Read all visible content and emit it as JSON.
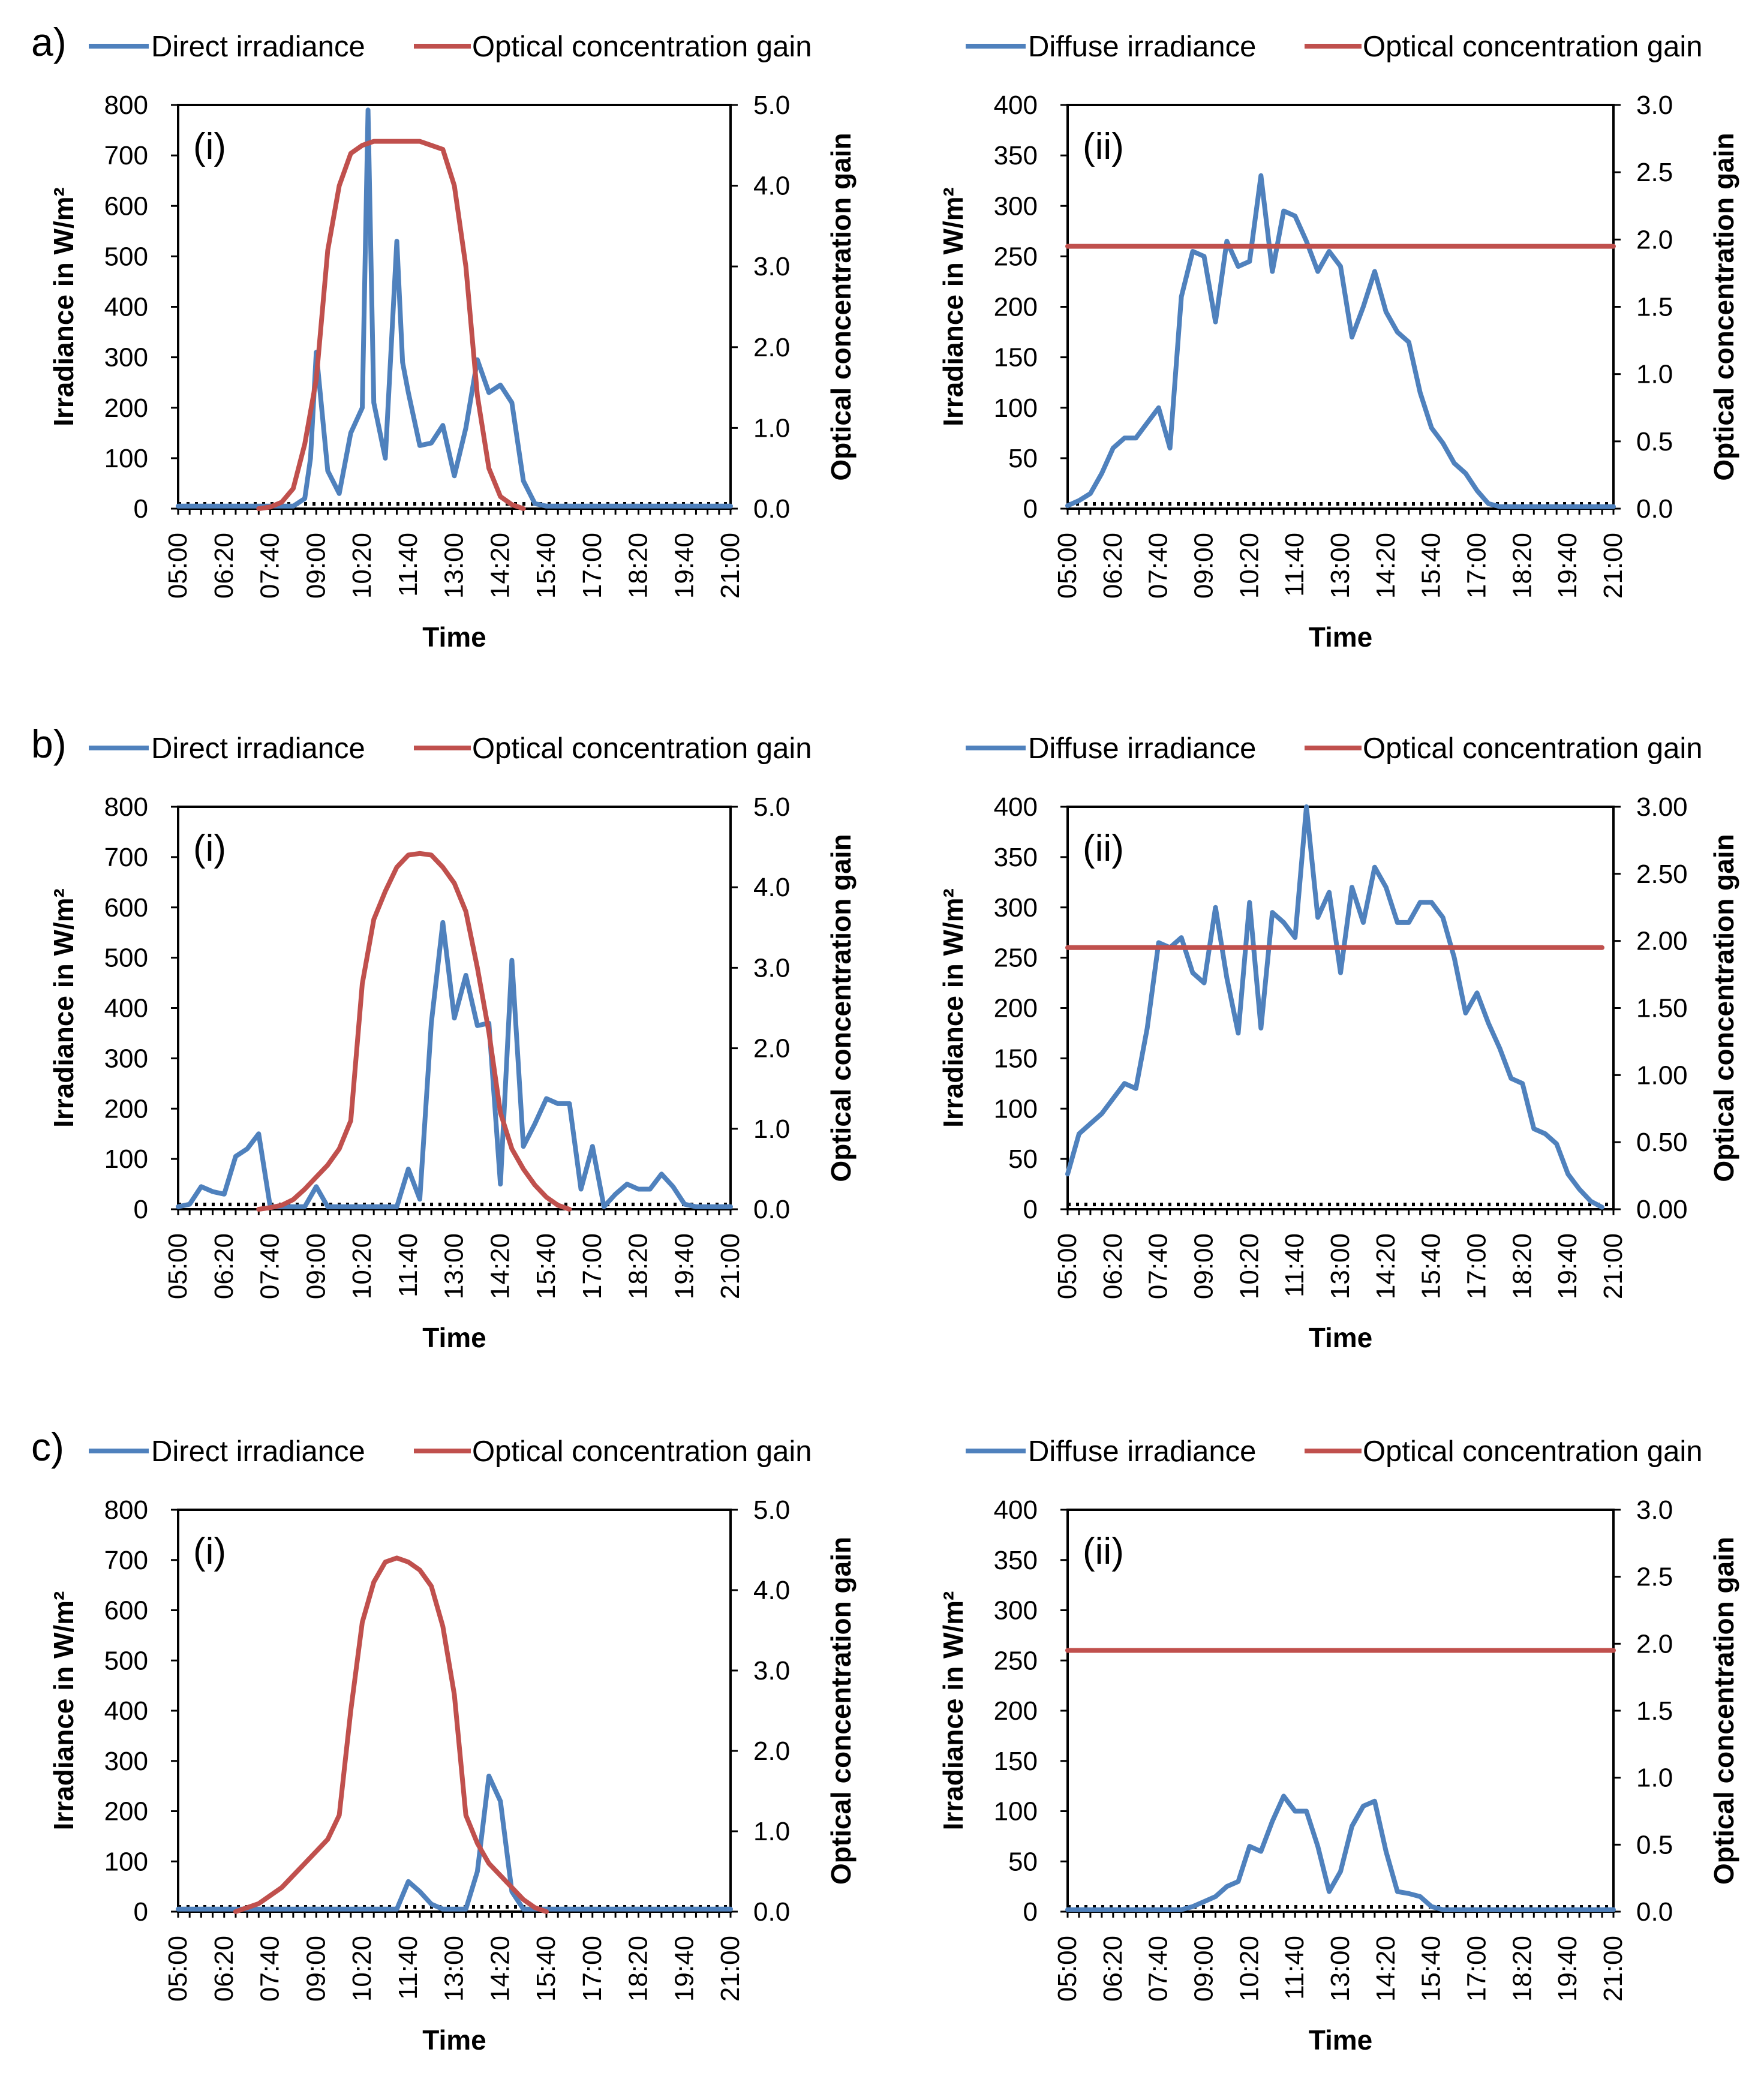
{
  "chart_data": [
    {
      "panel": "a)",
      "sub_label": "(i)",
      "type": "line",
      "legend": [
        "Direct irradiance",
        "Optical concentration gain"
      ],
      "xlabel": "Time",
      "ylabel": "Irradiance in W/m²",
      "y2label": "Optical concentration  gain",
      "x_ticks": [
        "05:00",
        "06:20",
        "07:40",
        "09:00",
        "10:20",
        "11:40",
        "13:00",
        "14:20",
        "15:40",
        "17:00",
        "18:20",
        "19:40",
        "21:00"
      ],
      "ylim": [
        0,
        800
      ],
      "y_ticks": [
        "0",
        "100",
        "200",
        "300",
        "400",
        "500",
        "600",
        "700",
        "800"
      ],
      "y2lim": [
        0,
        5
      ],
      "y2_ticks": [
        "0.0",
        "1.0",
        "2.0",
        "3.0",
        "4.0",
        "5.0"
      ],
      "series": [
        {
          "name": "Direct irradiance",
          "axis": "left",
          "color": "#4f81bd",
          "x": [
            "05:00",
            "07:40",
            "08:00",
            "08:20",
            "08:40",
            "08:50",
            "09:00",
            "09:20",
            "09:40",
            "10:00",
            "10:20",
            "10:30",
            "10:40",
            "11:00",
            "11:20",
            "11:30",
            "11:40",
            "12:00",
            "12:20",
            "12:40",
            "13:00",
            "13:20",
            "13:40",
            "14:00",
            "14:20",
            "14:40",
            "15:00",
            "15:20",
            "15:40",
            "16:00",
            "16:20",
            "21:00"
          ],
          "values": [
            5,
            5,
            5,
            5,
            20,
            100,
            310,
            75,
            30,
            150,
            200,
            790,
            210,
            100,
            530,
            290,
            230,
            125,
            130,
            165,
            65,
            160,
            295,
            230,
            245,
            210,
            55,
            10,
            5,
            5,
            5,
            5
          ]
        },
        {
          "name": "Optical concentration gain",
          "axis": "right",
          "color": "#c0504d",
          "x": [
            "07:20",
            "07:40",
            "08:00",
            "08:20",
            "08:40",
            "09:00",
            "09:20",
            "09:40",
            "10:00",
            "10:20",
            "10:40",
            "11:00",
            "11:20",
            "11:40",
            "12:00",
            "12:20",
            "12:40",
            "13:00",
            "13:20",
            "13:40",
            "14:00",
            "14:20",
            "14:40",
            "15:00"
          ],
          "values": [
            0.0,
            0.02,
            0.08,
            0.25,
            0.8,
            1.6,
            3.2,
            4.0,
            4.4,
            4.5,
            4.55,
            4.55,
            4.55,
            4.55,
            4.55,
            4.5,
            4.45,
            4.0,
            3.0,
            1.4,
            0.5,
            0.15,
            0.05,
            0.0
          ]
        }
      ]
    },
    {
      "panel": "",
      "sub_label": "(ii)",
      "type": "line",
      "legend": [
        "Diffuse irradiance",
        "Optical concentration gain"
      ],
      "xlabel": "Time",
      "ylabel": "Irradiance in W/m²",
      "y2label": "Optical concentration  gain",
      "x_ticks": [
        "05:00",
        "06:20",
        "07:40",
        "09:00",
        "10:20",
        "11:40",
        "13:00",
        "14:20",
        "15:40",
        "17:00",
        "18:20",
        "19:40",
        "21:00"
      ],
      "ylim": [
        0,
        400
      ],
      "y_ticks": [
        "0",
        "50",
        "100",
        "150",
        "200",
        "250",
        "300",
        "350",
        "400"
      ],
      "y2lim": [
        0,
        3
      ],
      "y2_ticks": [
        "0.0",
        "0.5",
        "1.0",
        "1.5",
        "2.0",
        "2.5",
        "3.0"
      ],
      "series": [
        {
          "name": "Diffuse irradiance",
          "axis": "left",
          "color": "#4f81bd",
          "x": [
            "05:00",
            "05:20",
            "05:40",
            "06:00",
            "06:20",
            "06:40",
            "07:00",
            "07:20",
            "07:40",
            "08:00",
            "08:20",
            "08:40",
            "09:00",
            "09:20",
            "09:40",
            "10:00",
            "10:20",
            "10:40",
            "11:00",
            "11:20",
            "11:40",
            "12:00",
            "12:20",
            "12:40",
            "13:00",
            "13:20",
            "13:40",
            "14:00",
            "14:20",
            "14:40",
            "15:00",
            "15:20",
            "15:40",
            "16:00",
            "16:20",
            "16:40",
            "17:00",
            "17:20",
            "17:40",
            "18:00",
            "21:00"
          ],
          "values": [
            3,
            8,
            15,
            35,
            60,
            70,
            70,
            85,
            100,
            60,
            210,
            255,
            250,
            185,
            265,
            240,
            245,
            330,
            235,
            295,
            290,
            265,
            235,
            255,
            240,
            170,
            200,
            235,
            195,
            175,
            165,
            115,
            80,
            65,
            45,
            35,
            18,
            5,
            2,
            2,
            2
          ]
        },
        {
          "name": "Optical concentration gain",
          "axis": "right",
          "color": "#c0504d",
          "x": [
            "05:00",
            "21:00"
          ],
          "values": [
            1.95,
            1.95
          ]
        }
      ]
    },
    {
      "panel": "b)",
      "sub_label": "(i)",
      "type": "line",
      "legend": [
        "Direct irradiance",
        "Optical concentration gain"
      ],
      "xlabel": "Time",
      "ylabel": "Irradiance in W/m²",
      "y2label": "Optical concentration  gain",
      "x_ticks": [
        "05:00",
        "06:20",
        "07:40",
        "09:00",
        "10:20",
        "11:40",
        "13:00",
        "14:20",
        "15:40",
        "17:00",
        "18:20",
        "19:40",
        "21:00"
      ],
      "ylim": [
        0,
        800
      ],
      "y_ticks": [
        "0",
        "100",
        "200",
        "300",
        "400",
        "500",
        "600",
        "700",
        "800"
      ],
      "y2lim": [
        0,
        5
      ],
      "y2_ticks": [
        "0.0",
        "1.0",
        "2.0",
        "3.0",
        "4.0",
        "5.0"
      ],
      "series": [
        {
          "name": "Direct irradiance",
          "axis": "left",
          "color": "#4f81bd",
          "x": [
            "05:00",
            "05:20",
            "05:40",
            "06:00",
            "06:20",
            "06:40",
            "07:00",
            "07:20",
            "07:40",
            "08:00",
            "08:20",
            "08:40",
            "09:00",
            "09:20",
            "09:40",
            "10:00",
            "10:20",
            "10:40",
            "11:00",
            "11:20",
            "11:40",
            "12:00",
            "12:20",
            "12:40",
            "13:00",
            "13:20",
            "13:40",
            "14:00",
            "14:20",
            "14:40",
            "15:00",
            "15:20",
            "15:40",
            "16:00",
            "16:20",
            "16:40",
            "17:00",
            "17:20",
            "17:40",
            "18:00",
            "18:20",
            "18:40",
            "19:00",
            "19:20",
            "19:40",
            "20:00",
            "20:20",
            "20:40",
            "21:00"
          ],
          "values": [
            5,
            10,
            45,
            35,
            30,
            105,
            120,
            150,
            5,
            5,
            5,
            5,
            45,
            5,
            5,
            5,
            5,
            5,
            5,
            5,
            80,
            20,
            370,
            570,
            380,
            465,
            365,
            370,
            50,
            495,
            125,
            170,
            220,
            210,
            210,
            40,
            125,
            5,
            30,
            50,
            40,
            40,
            70,
            45,
            10,
            5,
            5,
            5,
            5
          ]
        },
        {
          "name": "Optical concentration gain",
          "axis": "right",
          "color": "#c0504d",
          "x": [
            "07:20",
            "07:40",
            "08:00",
            "08:20",
            "08:40",
            "09:00",
            "09:20",
            "09:40",
            "10:00",
            "10:20",
            "10:40",
            "11:00",
            "11:20",
            "11:40",
            "12:00",
            "12:20",
            "12:40",
            "13:00",
            "13:20",
            "13:40",
            "14:00",
            "14:20",
            "14:40",
            "15:00",
            "15:20",
            "15:40",
            "16:00",
            "16:20"
          ],
          "values": [
            0.0,
            0.02,
            0.05,
            0.12,
            0.25,
            0.4,
            0.55,
            0.75,
            1.1,
            2.8,
            3.6,
            3.95,
            4.25,
            4.4,
            4.42,
            4.4,
            4.25,
            4.05,
            3.7,
            3.0,
            2.2,
            1.2,
            0.75,
            0.5,
            0.3,
            0.15,
            0.05,
            0.0
          ]
        }
      ]
    },
    {
      "panel": "",
      "sub_label": "(ii)",
      "type": "line",
      "legend": [
        "Diffuse irradiance",
        "Optical concentration gain"
      ],
      "xlabel": "Time",
      "ylabel": "Irradiance in W/m²",
      "y2label": "Optical concentration  gain",
      "x_ticks": [
        "05:00",
        "06:20",
        "07:40",
        "09:00",
        "10:20",
        "11:40",
        "13:00",
        "14:20",
        "15:40",
        "17:00",
        "18:20",
        "19:40",
        "21:00"
      ],
      "ylim": [
        0,
        400
      ],
      "y_ticks": [
        "0",
        "50",
        "100",
        "150",
        "200",
        "250",
        "300",
        "350",
        "400"
      ],
      "y2lim": [
        0,
        3
      ],
      "y2_ticks": [
        "0.00",
        "0.50",
        "1.00",
        "1.50",
        "2.00",
        "2.50",
        "3.00"
      ],
      "series": [
        {
          "name": "Diffuse irradiance",
          "axis": "left",
          "color": "#4f81bd",
          "x": [
            "05:00",
            "05:20",
            "05:40",
            "06:00",
            "06:20",
            "06:40",
            "07:00",
            "07:20",
            "07:40",
            "08:00",
            "08:20",
            "08:40",
            "09:00",
            "09:20",
            "09:40",
            "10:00",
            "10:20",
            "10:40",
            "11:00",
            "11:20",
            "11:40",
            "12:00",
            "12:20",
            "12:40",
            "13:00",
            "13:20",
            "13:40",
            "14:00",
            "14:20",
            "14:40",
            "15:00",
            "15:20",
            "15:40",
            "16:00",
            "16:20",
            "16:40",
            "17:00",
            "17:20",
            "17:40",
            "18:00",
            "18:20",
            "18:40",
            "19:00",
            "19:20",
            "19:40",
            "20:00",
            "20:20",
            "20:40"
          ],
          "values": [
            35,
            75,
            85,
            95,
            110,
            125,
            120,
            180,
            265,
            260,
            270,
            235,
            225,
            300,
            230,
            175,
            305,
            180,
            295,
            285,
            270,
            400,
            290,
            315,
            235,
            320,
            285,
            340,
            320,
            285,
            285,
            305,
            305,
            290,
            250,
            195,
            215,
            185,
            160,
            130,
            125,
            80,
            75,
            65,
            35,
            20,
            8,
            2
          ]
        },
        {
          "name": "Optical concentration gain",
          "axis": "right",
          "color": "#c0504d",
          "x": [
            "05:00",
            "20:40"
          ],
          "values": [
            1.95,
            1.95
          ]
        }
      ]
    },
    {
      "panel": "c)",
      "sub_label": "(i)",
      "type": "line",
      "legend": [
        "Direct irradiance",
        "Optical concentration gain"
      ],
      "xlabel": "Time",
      "ylabel": "Irradiance in W/m²",
      "y2label": "Optical concentration  gain",
      "x_ticks": [
        "05:00",
        "06:20",
        "07:40",
        "09:00",
        "10:20",
        "11:40",
        "13:00",
        "14:20",
        "15:40",
        "17:00",
        "18:20",
        "19:40",
        "21:00"
      ],
      "ylim": [
        0,
        800
      ],
      "y_ticks": [
        "0",
        "100",
        "200",
        "300",
        "400",
        "500",
        "600",
        "700",
        "800"
      ],
      "y2lim": [
        0,
        5
      ],
      "y2_ticks": [
        "0.0",
        "1.0",
        "2.0",
        "3.0",
        "4.0",
        "5.0"
      ],
      "series": [
        {
          "name": "Direct irradiance",
          "axis": "left",
          "color": "#4f81bd",
          "x": [
            "05:00",
            "11:00",
            "11:20",
            "11:40",
            "12:00",
            "12:20",
            "12:40",
            "13:00",
            "13:20",
            "13:40",
            "14:00",
            "14:20",
            "14:40",
            "15:00",
            "21:00"
          ],
          "values": [
            5,
            5,
            5,
            60,
            40,
            15,
            5,
            5,
            5,
            80,
            270,
            220,
            40,
            5,
            5
          ]
        },
        {
          "name": "Optical concentration gain",
          "axis": "right",
          "color": "#c0504d",
          "x": [
            "06:40",
            "07:00",
            "07:20",
            "07:40",
            "08:00",
            "08:20",
            "08:40",
            "09:00",
            "09:20",
            "09:40",
            "10:00",
            "10:20",
            "10:40",
            "11:00",
            "11:20",
            "11:40",
            "12:00",
            "12:20",
            "12:40",
            "13:00",
            "13:20",
            "13:40",
            "14:00",
            "14:20",
            "14:40",
            "15:00",
            "15:20",
            "15:40"
          ],
          "values": [
            0.0,
            0.05,
            0.1,
            0.2,
            0.3,
            0.45,
            0.6,
            0.75,
            0.9,
            1.2,
            2.5,
            3.6,
            4.1,
            4.35,
            4.4,
            4.35,
            4.25,
            4.05,
            3.55,
            2.7,
            1.2,
            0.85,
            0.6,
            0.45,
            0.3,
            0.15,
            0.05,
            0.0
          ]
        }
      ]
    },
    {
      "panel": "",
      "sub_label": "(ii)",
      "type": "line",
      "legend": [
        "Diffuse irradiance",
        "Optical concentration gain"
      ],
      "xlabel": "Time",
      "ylabel": "Irradiance in W/m²",
      "y2label": "Optical concentration  gain",
      "x_ticks": [
        "05:00",
        "06:20",
        "07:40",
        "09:00",
        "10:20",
        "11:40",
        "13:00",
        "14:20",
        "15:40",
        "17:00",
        "18:20",
        "19:40",
        "21:00"
      ],
      "ylim": [
        0,
        400
      ],
      "y_ticks": [
        "0",
        "50",
        "100",
        "150",
        "200",
        "250",
        "300",
        "350",
        "400"
      ],
      "y2lim": [
        0,
        3
      ],
      "y2_ticks": [
        "0.0",
        "0.5",
        "1.0",
        "1.5",
        "2.0",
        "2.5",
        "3.0"
      ],
      "series": [
        {
          "name": "Diffuse irradiance",
          "axis": "left",
          "color": "#4f81bd",
          "x": [
            "05:00",
            "08:20",
            "08:40",
            "09:00",
            "09:20",
            "09:40",
            "10:00",
            "10:20",
            "10:40",
            "11:00",
            "11:20",
            "11:40",
            "12:00",
            "12:20",
            "12:40",
            "13:00",
            "13:20",
            "13:40",
            "14:00",
            "14:20",
            "14:40",
            "15:00",
            "15:20",
            "15:40",
            "16:00",
            "21:00"
          ],
          "values": [
            2,
            2,
            5,
            10,
            15,
            25,
            30,
            65,
            60,
            90,
            115,
            100,
            100,
            65,
            20,
            40,
            85,
            105,
            110,
            60,
            20,
            18,
            15,
            5,
            2,
            2
          ]
        },
        {
          "name": "Optical concentration gain",
          "axis": "right",
          "color": "#c0504d",
          "x": [
            "05:00",
            "21:00"
          ],
          "values": [
            1.95,
            1.95
          ]
        }
      ]
    }
  ]
}
